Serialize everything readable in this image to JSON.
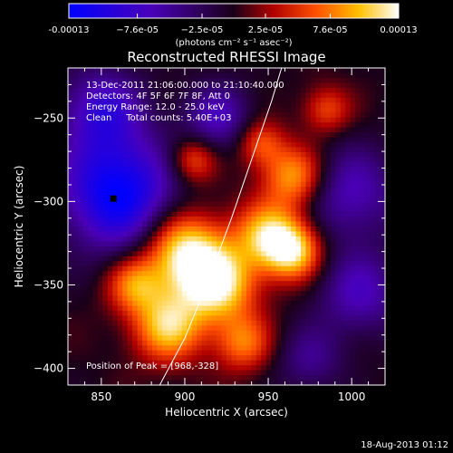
{
  "chart_data": {
    "type": "heatmap",
    "title": "Reconstructed RHESSI Image",
    "xlabel": "Heliocentric X (arcsec)",
    "ylabel": "Heliocentric Y (arcsec)",
    "xlim": [
      830,
      1020
    ],
    "ylim": [
      -410,
      -220
    ],
    "xticks": [
      850,
      900,
      950,
      1000
    ],
    "yticks": [
      -250,
      -300,
      -350,
      -400
    ],
    "colorbar": {
      "range": [
        -0.00013,
        0.00013
      ],
      "tick_values": [
        -0.00013,
        -7.6e-05,
        -2.5e-05,
        2.5e-05,
        7.6e-05,
        0.00013
      ],
      "tick_labels": [
        "-0.00013",
        "−7.6e-05",
        "−2.5e-05",
        "2.5e-05",
        "7.6e-05",
        "0.00013"
      ],
      "unit_label": "(photons cm⁻² s⁻¹ asec⁻²)"
    },
    "annotations": {
      "time_range": "13-Dec-2011 21:06:00.000 to 21:10:40.000",
      "detectors": "Detectors: 4F 5F 6F 7F 8F, Att 0",
      "energy": "Energy Range: 12.0 - 25.0 keV",
      "clean": "Clean     Total counts: 5.40E+03",
      "peak": "Position of Peak = [968,-328]"
    },
    "limb_curve": [
      [
        885,
        -410
      ],
      [
        900,
        -382
      ],
      [
        915,
        -345
      ],
      [
        928,
        -310
      ],
      [
        940,
        -275
      ],
      [
        952,
        -240
      ],
      [
        958,
        -220
      ]
    ],
    "peak_position": [
      968,
      -328
    ],
    "blobs": [
      {
        "x": 860,
        "y": -295,
        "amp": -1.0,
        "s": 24
      },
      {
        "x": 850,
        "y": -245,
        "amp": -0.6,
        "s": 18
      },
      {
        "x": 920,
        "y": -250,
        "amp": -0.5,
        "s": 15
      },
      {
        "x": 1000,
        "y": -295,
        "amp": -0.5,
        "s": 20
      },
      {
        "x": 1005,
        "y": -355,
        "amp": -0.5,
        "s": 18
      },
      {
        "x": 975,
        "y": -395,
        "amp": -0.35,
        "s": 14
      },
      {
        "x": 900,
        "y": -330,
        "amp": 0.95,
        "s": 17
      },
      {
        "x": 920,
        "y": -350,
        "amp": 0.9,
        "s": 16
      },
      {
        "x": 890,
        "y": -375,
        "amp": 0.8,
        "s": 15
      },
      {
        "x": 950,
        "y": -320,
        "amp": 0.75,
        "s": 14
      },
      {
        "x": 965,
        "y": -330,
        "amp": 0.8,
        "s": 12
      },
      {
        "x": 965,
        "y": -285,
        "amp": 0.7,
        "s": 13
      },
      {
        "x": 905,
        "y": -275,
        "amp": 0.55,
        "s": 10
      },
      {
        "x": 945,
        "y": -265,
        "amp": 0.5,
        "s": 10
      },
      {
        "x": 985,
        "y": -245,
        "amp": 0.45,
        "s": 10
      },
      {
        "x": 870,
        "y": -350,
        "amp": 0.6,
        "s": 12
      },
      {
        "x": 935,
        "y": -385,
        "amp": 0.55,
        "s": 12
      }
    ]
  },
  "footer": {
    "timestamp": "18-Aug-2013 01:12"
  }
}
